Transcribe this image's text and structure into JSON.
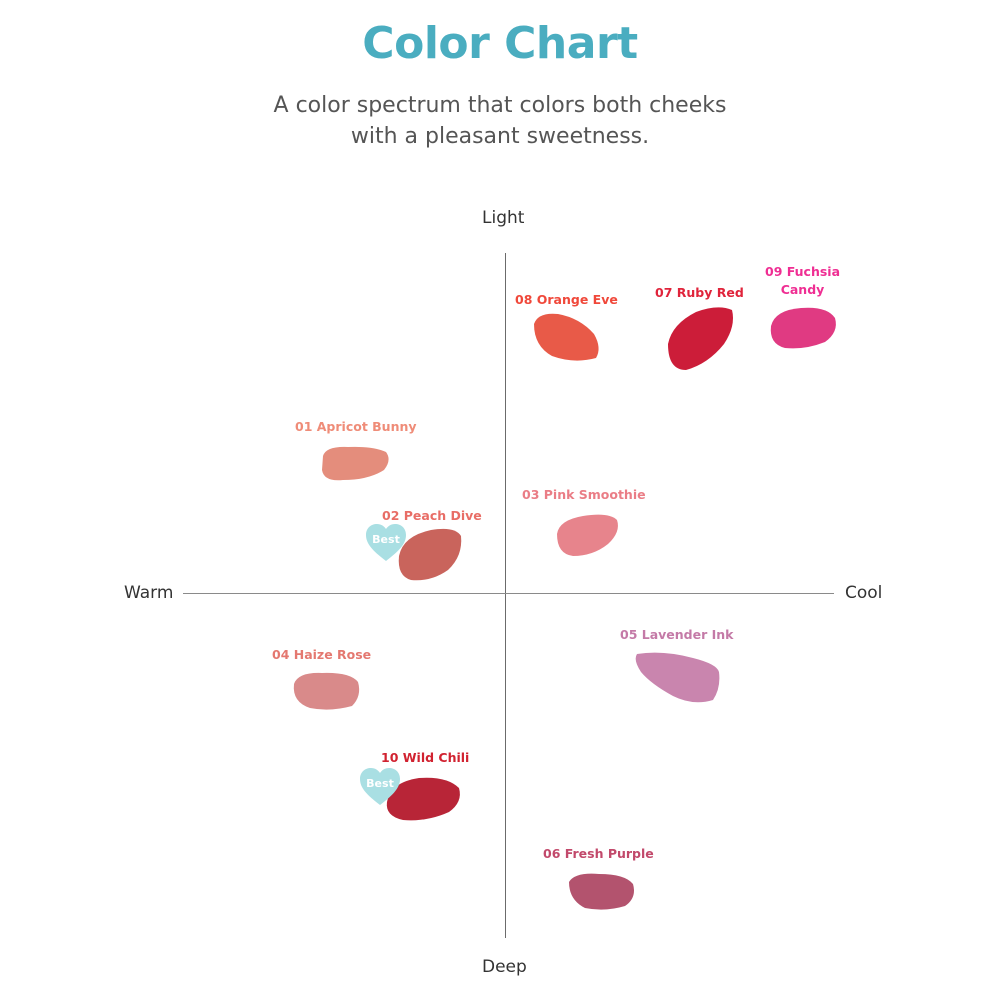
{
  "title": "Color Chart",
  "subtitle": {
    "line1": "A color spectrum that colors both cheeks",
    "line2": "with a pleasant sweetness."
  },
  "axes": {
    "top": "Light",
    "bottom": "Deep",
    "left": "Warm",
    "right": "Cool"
  },
  "colors": {
    "title": "#4aadc0",
    "best_badge": "#a9dfe3"
  },
  "badge_text": "Best",
  "shades": [
    {
      "label": "01 Apricot Bunny",
      "label_color": "#ef8c78",
      "swatch_color": "#e48d7c"
    },
    {
      "label": "02 Peach Dive",
      "label_color": "#e86d66",
      "swatch_color": "#c9645c",
      "badge": "Best"
    },
    {
      "label": "03 Pink Smoothie",
      "label_color": "#ea7d86",
      "swatch_color": "#e7848c"
    },
    {
      "label": "04 Haize Rose",
      "label_color": "#e47870",
      "swatch_color": "#d98a8a"
    },
    {
      "label": "05 Lavender Ink",
      "label_color": "#c47aa7",
      "swatch_color": "#c985ae"
    },
    {
      "label": "06 Fresh Purple",
      "label_color": "#c2496b",
      "swatch_color": "#b3536e"
    },
    {
      "label": "07 Ruby Red",
      "label_color": "#e0243b",
      "swatch_color": "#cc1d39"
    },
    {
      "label": "08 Orange Eve",
      "label_color": "#f0483a",
      "swatch_color": "#e85a48"
    },
    {
      "label": "09 Fuchsia Candy",
      "label_lines": [
        "09 Fuchsia",
        "Candy"
      ],
      "label_color": "#ef2e93",
      "swatch_color": "#e03a82"
    },
    {
      "label": "10 Wild Chili",
      "label_color": "#d12230",
      "swatch_color": "#b82537",
      "badge": "Best"
    }
  ]
}
